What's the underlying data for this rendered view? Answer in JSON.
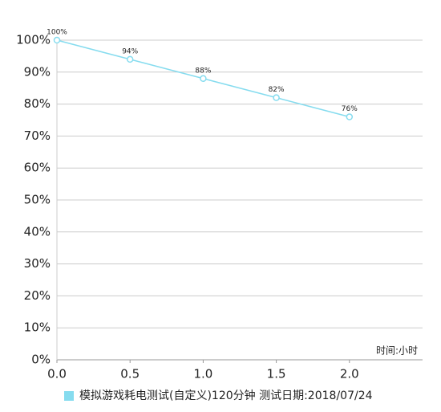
{
  "chart_data": {
    "type": "line",
    "x": [
      0,
      0.5,
      1,
      1.5,
      2
    ],
    "series": [
      {
        "name": "模拟游戏耗电测试(自定义)120分钟   测试日期:2018/07/24",
        "color": "#86dcef",
        "values": [
          100,
          94,
          88,
          82,
          76
        ],
        "value_labels": [
          "100%",
          "94%",
          "88%",
          "82%",
          "76%"
        ]
      }
    ],
    "x_label": "时间:小时",
    "xlim": [
      0,
      2.5
    ],
    "xticks": [
      {
        "value": 0,
        "label": "0.0"
      },
      0.5,
      {
        "value": 1,
        "label": "1.0"
      },
      1.5,
      {
        "value": 2,
        "label": "2.0"
      }
    ],
    "ylim": [
      0,
      100
    ],
    "yticks": [
      {
        "value": 0,
        "label": "0%"
      },
      {
        "value": 10,
        "label": "10%"
      },
      {
        "value": 20,
        "label": "20%"
      },
      {
        "value": 30,
        "label": "30%"
      },
      {
        "value": 40,
        "label": "40%"
      },
      {
        "value": 50,
        "label": "50%"
      },
      {
        "value": 60,
        "label": "60%"
      },
      {
        "value": 70,
        "label": "70%"
      },
      {
        "value": 80,
        "label": "80%"
      },
      {
        "value": 90,
        "label": "90%"
      },
      {
        "value": 100,
        "label": "100%"
      }
    ],
    "grid": true,
    "legend": "bottom"
  }
}
